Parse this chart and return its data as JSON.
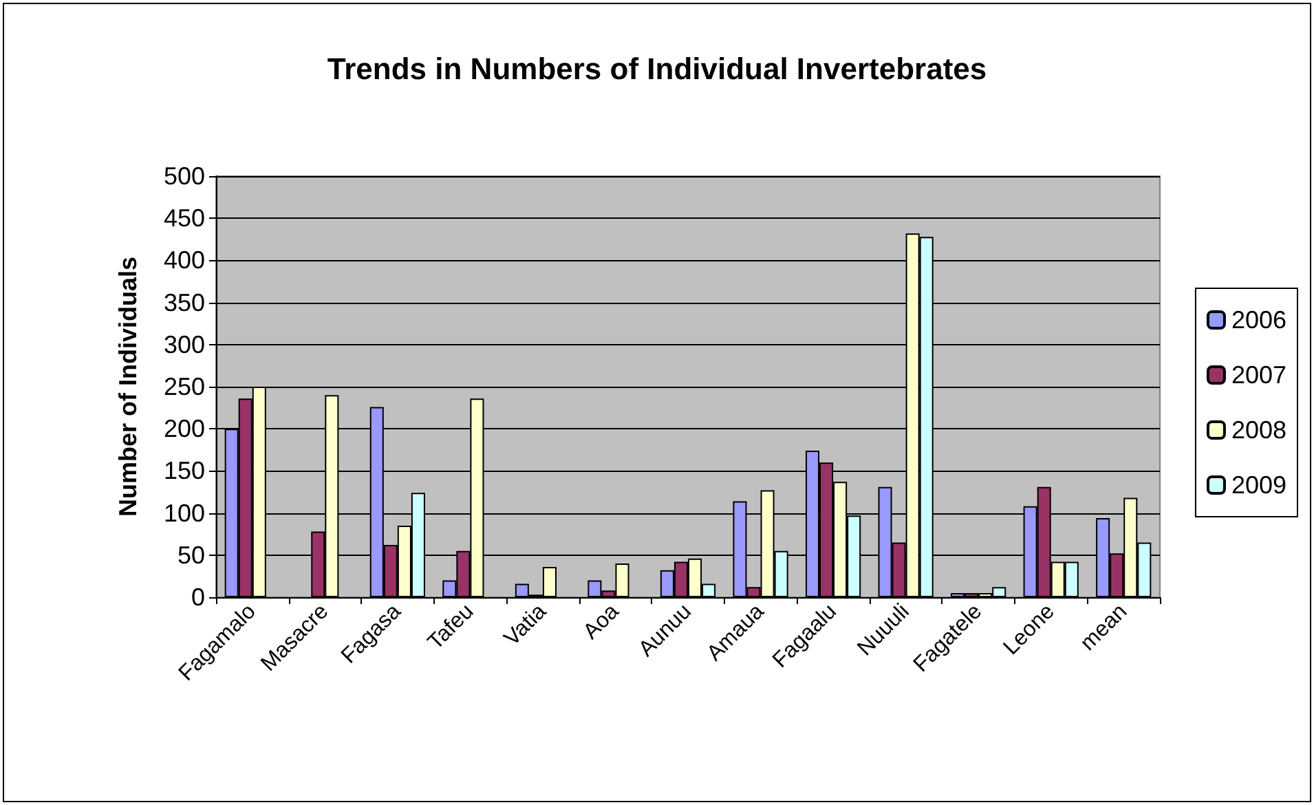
{
  "chart_data": {
    "type": "bar",
    "title": "Trends in Numbers of Individual Invertebrates",
    "ylabel": "Number of Individuals",
    "categories": [
      "Fagamalo",
      "Masacre",
      "Fagasa",
      "Tafeu",
      "Vatia",
      "Aoa",
      "Aunuu",
      "Amaua",
      "Fagaalu",
      "Nuuuli",
      "Fagatele",
      "Leone",
      "mean"
    ],
    "series": [
      {
        "name": "2006",
        "color": "#9999ff",
        "values": [
          200,
          null,
          226,
          20,
          16,
          20,
          32,
          114,
          174,
          131,
          5,
          108,
          94
        ]
      },
      {
        "name": "2007",
        "color": "#993366",
        "values": [
          236,
          78,
          62,
          55,
          3,
          8,
          42,
          12,
          160,
          65,
          5,
          131,
          52
        ]
      },
      {
        "name": "2008",
        "color": "#ffffcc",
        "values": [
          250,
          240,
          85,
          236,
          36,
          40,
          46,
          127,
          137,
          432,
          5,
          42,
          118
        ]
      },
      {
        "name": "2009",
        "color": "#ccffff",
        "values": [
          null,
          null,
          124,
          null,
          null,
          null,
          16,
          55,
          97,
          428,
          12,
          42,
          65
        ]
      }
    ],
    "ylim": [
      0,
      500
    ],
    "yticks": [
      0,
      50,
      100,
      150,
      200,
      250,
      300,
      350,
      400,
      450,
      500
    ],
    "grid": "y",
    "legend": "right"
  }
}
